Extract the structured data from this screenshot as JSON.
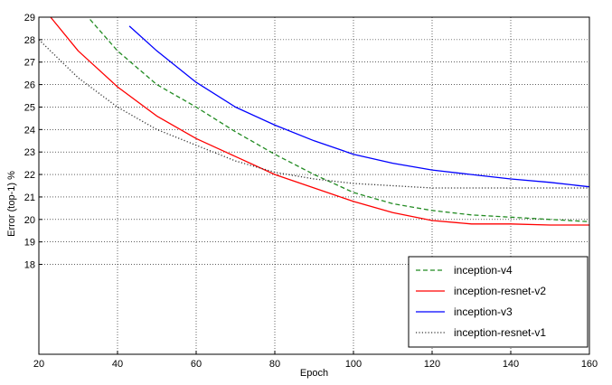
{
  "chart_data": {
    "type": "line",
    "xlabel": "Epoch",
    "ylabel": "Error (top-1) %",
    "xlim": [
      20,
      160
    ],
    "ylim": [
      14,
      29
    ],
    "grid": true,
    "x_ticks": [
      "20",
      "40",
      "60",
      "80",
      "100",
      "120",
      "140",
      "160"
    ],
    "y_ticks": [
      "18",
      "19",
      "20",
      "21",
      "22",
      "23",
      "24",
      "25",
      "26",
      "27",
      "28",
      "29"
    ],
    "legend_position": "bottom-right",
    "series": [
      {
        "name": "inception-v4",
        "color": "#228B22",
        "style": "dashed",
        "x": [
          33,
          40,
          50,
          60,
          70,
          80,
          90,
          100,
          110,
          120,
          130,
          140,
          150,
          160
        ],
        "y": [
          28.9,
          27.5,
          26.0,
          25.0,
          23.9,
          22.9,
          22.0,
          21.2,
          20.7,
          20.4,
          20.2,
          20.1,
          20.0,
          19.9
        ]
      },
      {
        "name": "inception-resnet-v2",
        "color": "#FF0000",
        "style": "solid",
        "x": [
          23,
          30,
          40,
          50,
          60,
          70,
          80,
          90,
          100,
          110,
          120,
          130,
          140,
          150,
          160
        ],
        "y": [
          29.0,
          27.5,
          25.9,
          24.6,
          23.6,
          22.8,
          22.0,
          21.4,
          20.8,
          20.3,
          19.95,
          19.8,
          19.8,
          19.75,
          19.75
        ]
      },
      {
        "name": "inception-v3",
        "color": "#0000FF",
        "style": "solid",
        "x": [
          43,
          50,
          60,
          70,
          80,
          90,
          100,
          110,
          120,
          130,
          140,
          150,
          160
        ],
        "y": [
          28.6,
          27.5,
          26.1,
          25.0,
          24.2,
          23.5,
          22.9,
          22.5,
          22.2,
          22.0,
          21.8,
          21.65,
          21.45
        ]
      },
      {
        "name": "inception-resnet-v1",
        "color": "#333333",
        "style": "dotted",
        "x": [
          20,
          30,
          40,
          50,
          60,
          70,
          80,
          90,
          100,
          110,
          120,
          130,
          140,
          150,
          160
        ],
        "y": [
          28.0,
          26.3,
          25.0,
          24.0,
          23.3,
          22.6,
          22.1,
          21.8,
          21.6,
          21.5,
          21.4,
          21.4,
          21.4,
          21.4,
          21.4
        ]
      }
    ]
  }
}
